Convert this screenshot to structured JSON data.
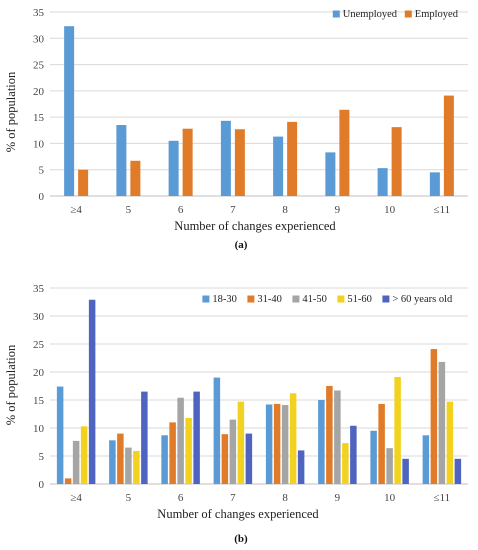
{
  "chart_data": [
    {
      "type": "bar",
      "panel_label": "(a)",
      "categories": [
        "≥4",
        "5",
        "6",
        "7",
        "8",
        "9",
        "10",
        "≤11"
      ],
      "series": [
        {
          "name": "Unemployed",
          "color": "#5b9bd5",
          "values": [
            32.3,
            13.5,
            10.5,
            14.3,
            11.3,
            8.3,
            5.3,
            4.5
          ]
        },
        {
          "name": "Employed",
          "color": "#e07b2a",
          "values": [
            5.0,
            6.7,
            12.8,
            12.7,
            14.1,
            16.4,
            13.1,
            19.1
          ]
        }
      ],
      "xlabel": "Number of changes experienced",
      "ylabel": "% of population",
      "ylim": [
        0,
        35
      ],
      "yticks": [
        0,
        5,
        10,
        15,
        20,
        25,
        30,
        35
      ],
      "grid": true,
      "legend_position": "top-right"
    },
    {
      "type": "bar",
      "panel_label": "(b)",
      "categories": [
        "≥4",
        "5",
        "6",
        "7",
        "8",
        "9",
        "10",
        "≤11"
      ],
      "series": [
        {
          "name": "18-30",
          "color": "#5b9bd5",
          "values": [
            17.4,
            7.8,
            8.7,
            19.0,
            14.2,
            15.0,
            9.5,
            8.7
          ]
        },
        {
          "name": "31-40",
          "color": "#e07b2a",
          "values": [
            1.0,
            9.0,
            11.0,
            8.9,
            14.3,
            17.5,
            14.3,
            24.1
          ]
        },
        {
          "name": "41-50",
          "color": "#a5a5a5",
          "values": [
            7.7,
            6.5,
            15.4,
            11.5,
            14.1,
            16.7,
            6.4,
            21.8
          ]
        },
        {
          "name": "51-60",
          "color": "#f2d21e",
          "values": [
            10.3,
            5.9,
            11.8,
            14.7,
            16.2,
            7.3,
            19.1,
            14.7
          ]
        },
        {
          "name": "> 60 years old",
          "color": "#4f64c0",
          "values": [
            32.9,
            16.5,
            16.5,
            9.0,
            6.0,
            10.4,
            4.5,
            4.5
          ]
        }
      ],
      "xlabel": "Number of changes experienced",
      "ylabel": "% of population",
      "ylim": [
        0,
        35
      ],
      "yticks": [
        0,
        5,
        10,
        15,
        20,
        25,
        30,
        35
      ],
      "grid": true,
      "legend_position": "top-right"
    }
  ]
}
